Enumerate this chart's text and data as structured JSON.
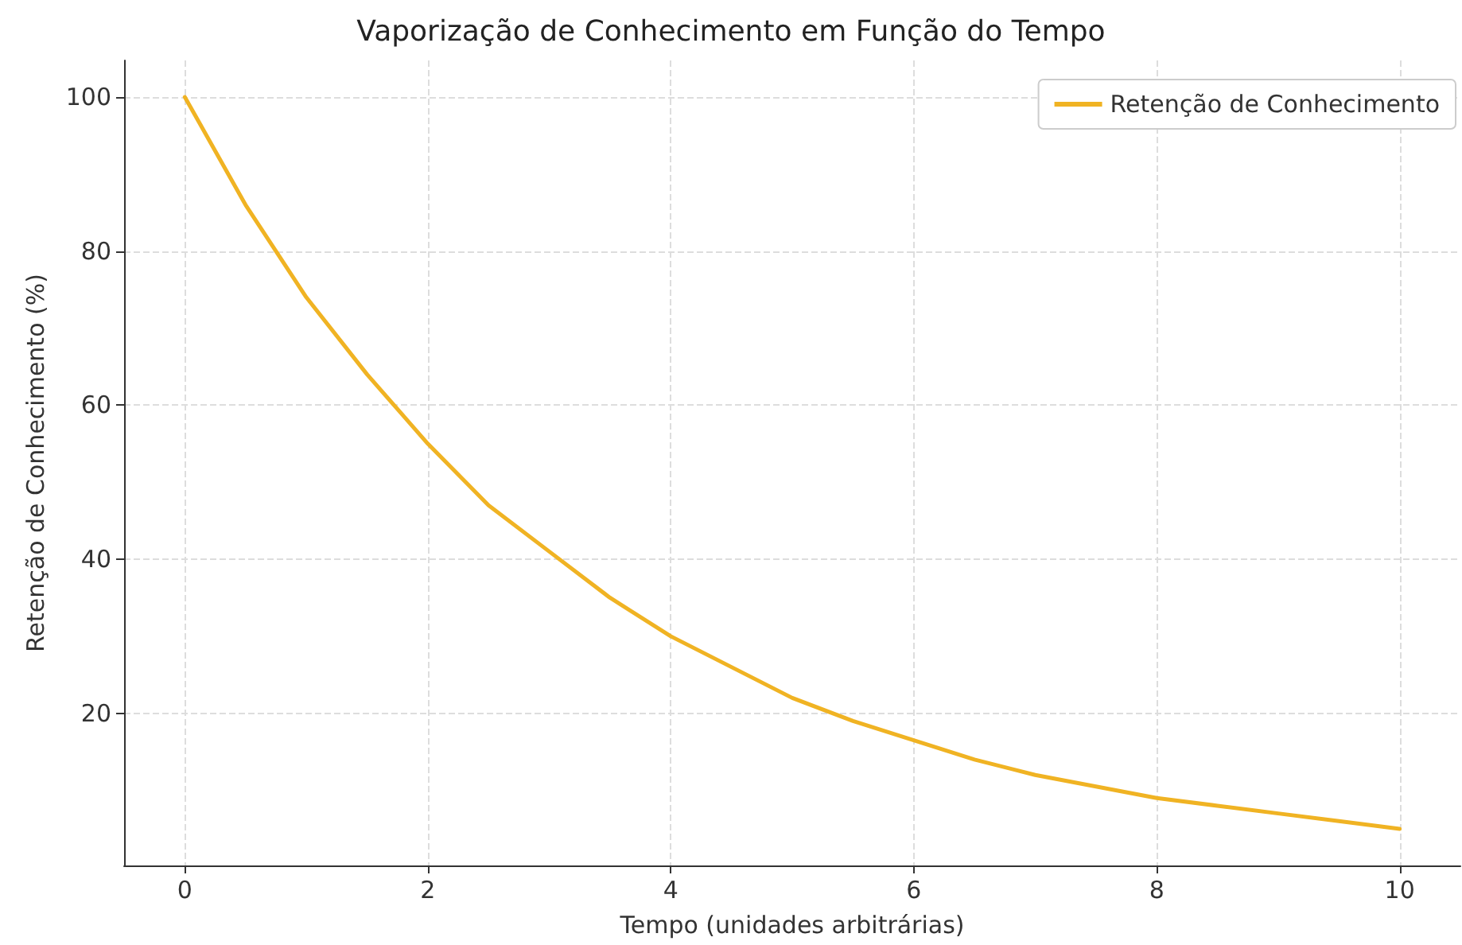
{
  "chart_data": {
    "type": "line",
    "title": "Vaporização de Conhecimento em Função do Tempo",
    "xlabel": "Tempo (unidades arbitrárias)",
    "ylabel": "Retenção de Conhecimento (%)",
    "x": [
      0,
      0.5,
      1,
      1.5,
      2,
      2.5,
      3,
      3.5,
      4,
      4.5,
      5,
      5.5,
      6,
      6.5,
      7,
      7.5,
      8,
      8.5,
      9,
      9.5,
      10
    ],
    "series": [
      {
        "name": "Retenção de Conhecimento",
        "color": "#f0b323",
        "values": [
          100,
          86,
          74,
          64,
          55,
          47,
          41,
          35,
          30,
          26,
          22,
          19,
          16.5,
          14,
          12,
          10.5,
          9,
          8,
          7,
          6,
          5
        ]
      }
    ],
    "xlim": [
      -0.5,
      10.5
    ],
    "xticks": [
      0,
      2,
      4,
      6,
      8,
      10
    ],
    "ylim": [
      0.25,
      104.75
    ],
    "yticks": [
      20,
      40,
      60,
      80,
      100
    ],
    "grid": true,
    "legend": "top right",
    "marker": "none",
    "line_style": "solid"
  }
}
